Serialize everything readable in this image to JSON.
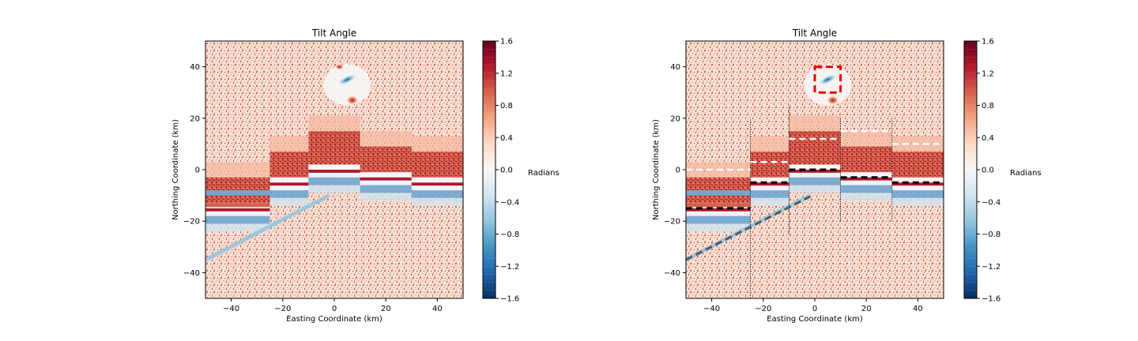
{
  "chart_data": [
    {
      "type": "heatmap",
      "title": "Tilt Angle",
      "xlabel": "Easting Coordinate (km)",
      "ylabel": "Northing Coordinate (km)",
      "xlim": [
        -50,
        50
      ],
      "ylim": [
        -50,
        50
      ],
      "xticks": [
        -40,
        -20,
        0,
        20,
        40
      ],
      "yticks": [
        -40,
        -20,
        0,
        20,
        40
      ],
      "colorbar": {
        "label": "Radians",
        "range": [
          -1.6,
          1.6
        ],
        "ticks": [
          "-1.6",
          "-1.2",
          "-0.8",
          "-0.4",
          "0.0",
          "0.4",
          "0.8",
          "1.2",
          "1.6"
        ],
        "colormap": "RdBu_r"
      },
      "colors": {
        "positive": "#67001f",
        "mid": "#f7f7f7",
        "negative": "#053061"
      },
      "features": {
        "anomaly_center": [
          5,
          35
        ],
        "fault_blocks": [
          {
            "x": [
              -50,
              -25
            ],
            "edge_y": -15
          },
          {
            "x": [
              -25,
              -10
            ],
            "edge_y": -5
          },
          {
            "x": [
              -10,
              10
            ],
            "edge_y": 0
          },
          {
            "x": [
              10,
              30
            ],
            "edge_y": -3
          },
          {
            "x": [
              30,
              50
            ],
            "edge_y": -5
          }
        ],
        "diagonal_lineament": {
          "from": [
            -50,
            -35
          ],
          "to": [
            -2,
            -10
          ]
        }
      }
    },
    {
      "type": "heatmap",
      "title": "Tilt Angle",
      "xlabel": "Easting Coordinate (km)",
      "ylabel": "Northing Coordinate (km)",
      "xlim": [
        -50,
        50
      ],
      "ylim": [
        -50,
        50
      ],
      "xticks": [
        -40,
        -20,
        0,
        20,
        40
      ],
      "yticks": [
        -40,
        -20,
        0,
        20,
        40
      ],
      "colorbar": {
        "label": "Radians",
        "range": [
          -1.6,
          1.6
        ],
        "ticks": [
          "-1.6",
          "-1.2",
          "-0.8",
          "-0.4",
          "0.0",
          "0.4",
          "0.8",
          "1.2",
          "1.6"
        ],
        "colormap": "RdBu_r"
      },
      "annotations": {
        "white_dashed_lines": [
          {
            "x": [
              -50,
              -25
            ],
            "y": 0
          },
          {
            "x": [
              -25,
              -10
            ],
            "y": 3
          },
          {
            "x": [
              -10,
              10
            ],
            "y": 12
          },
          {
            "x": [
              10,
              30
            ],
            "y": 15
          },
          {
            "x": [
              30,
              50
            ],
            "y": 10
          }
        ],
        "black_dashed_lines": [
          {
            "x": [
              -50,
              -25
            ],
            "y": -15
          },
          {
            "x": [
              -25,
              -10
            ],
            "y": -5
          },
          {
            "x": [
              -10,
              10
            ],
            "y": 0
          },
          {
            "x": [
              10,
              30
            ],
            "y": -3
          },
          {
            "x": [
              30,
              50
            ],
            "y": -5
          }
        ],
        "vertical_dotted_lines": [
          {
            "x": -25,
            "y": [
              -50,
              20
            ]
          },
          {
            "x": -10,
            "y": [
              -25,
              25
            ]
          },
          {
            "x": 10,
            "y": [
              -20,
              20
            ]
          },
          {
            "x": 30,
            "y": [
              -20,
              20
            ]
          }
        ],
        "diagonal_dashed_line": {
          "from": [
            -50,
            -35
          ],
          "to": [
            -1,
            -10
          ],
          "color": "#505a64"
        },
        "red_box": {
          "x": [
            0,
            10
          ],
          "y": [
            30,
            40
          ],
          "color": "#ee0000"
        }
      }
    }
  ]
}
